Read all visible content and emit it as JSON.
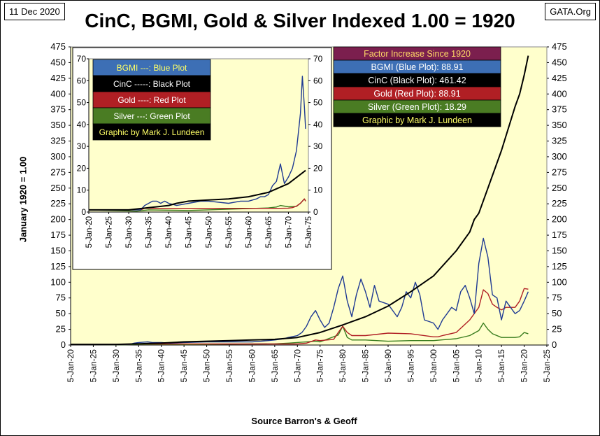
{
  "header": {
    "date": "11 Dec 2020",
    "source": "GATA.Org"
  },
  "chart_data": [
    {
      "id": "main",
      "type": "line",
      "title": "CinC, BGMI, Gold & Silver Indexed 1.00 = 1920",
      "xlabel": "Source Barron's & Geoff",
      "ylabel": "January 1920 = 1.00",
      "ylim": [
        0,
        475
      ],
      "xlim": [
        1920,
        2025
      ],
      "y_ticks": [
        0,
        25,
        50,
        75,
        100,
        125,
        150,
        175,
        200,
        225,
        250,
        275,
        300,
        325,
        350,
        375,
        400,
        425,
        450,
        475
      ],
      "x_tick_labels": [
        "5-Jan-20",
        "5-Jan-25",
        "5-Jan-30",
        "5-Jan-35",
        "5-Jan-40",
        "5-Jan-45",
        "5-Jan-50",
        "5-Jan-55",
        "5-Jan-60",
        "5-Jan-65",
        "5-Jan-70",
        "5-Jan-75",
        "5-Jan-80",
        "5-Jan-85",
        "5-Jan-90",
        "5-Jan-95",
        "5-Jan-00",
        "5-Jan-05",
        "5-Jan-10",
        "5-Jan-15",
        "5-Jan-20",
        "5-Jan-25"
      ],
      "legend_position": "top-right",
      "legend": [
        {
          "text": "Factor Increase Since 1920",
          "bg": "#7b1f4e",
          "fg": "#ffd966"
        },
        {
          "text": "BGMI (Blue Plot):   88.91",
          "bg": "#3d6fb5",
          "fg": "#ffffff"
        },
        {
          "text": "CinC (Black Plot):  461.42",
          "bg": "#000000",
          "fg": "#ffffff"
        },
        {
          "text": "Gold (Red Plot):     88.91",
          "bg": "#b01f24",
          "fg": "#ffffff"
        },
        {
          "text": "Silver (Green Plot):  18.29",
          "bg": "#4a7c23",
          "fg": "#ffffff"
        },
        {
          "text": "Graphic by Mark J. Lundeen",
          "bg": "#000000",
          "fg": "#ffff66"
        }
      ],
      "series": [
        {
          "name": "BGMI",
          "color": "#1f3a93",
          "x": [
            1920,
            1933,
            1934,
            1935,
            1937,
            1938,
            1940,
            1942,
            1945,
            1950,
            1955,
            1960,
            1962,
            1965,
            1967,
            1968,
            1970,
            1971,
            1972,
            1973,
            1974,
            1975,
            1976,
            1977,
            1978,
            1979,
            1980,
            1981,
            1982,
            1983,
            1984,
            1985,
            1986,
            1987,
            1988,
            1990,
            1992,
            1993,
            1994,
            1995,
            1996,
            1997,
            1998,
            2000,
            2001,
            2002,
            2003,
            2004,
            2005,
            2006,
            2007,
            2008,
            2009,
            2010,
            2011,
            2012,
            2013,
            2014,
            2015,
            2016,
            2017,
            2018,
            2019,
            2020,
            2020.9
          ],
          "y": [
            1,
            1,
            3,
            4,
            5,
            4,
            4,
            3,
            4,
            5,
            5,
            5,
            6,
            8,
            10,
            12,
            15,
            20,
            30,
            45,
            55,
            40,
            28,
            35,
            60,
            90,
            110,
            70,
            45,
            80,
            105,
            85,
            60,
            95,
            70,
            65,
            45,
            60,
            85,
            75,
            100,
            80,
            40,
            35,
            25,
            40,
            50,
            60,
            55,
            85,
            95,
            75,
            50,
            130,
            170,
            140,
            80,
            75,
            40,
            70,
            60,
            50,
            55,
            70,
            85
          ]
        },
        {
          "name": "CinC",
          "color": "#000000",
          "x": [
            1920,
            1930,
            1935,
            1940,
            1945,
            1950,
            1955,
            1960,
            1965,
            1970,
            1975,
            1980,
            1985,
            1990,
            1995,
            2000,
            2005,
            2008,
            2009,
            2010,
            2012,
            2015,
            2018,
            2019,
            2020,
            2020.9
          ],
          "y": [
            1,
            1,
            2,
            3,
            5,
            6,
            7,
            8,
            9,
            12,
            20,
            32,
            45,
            62,
            85,
            110,
            150,
            180,
            200,
            210,
            250,
            310,
            380,
            400,
            430,
            461
          ]
        },
        {
          "name": "Gold",
          "color": "#b01f24",
          "x": [
            1920,
            1933,
            1934,
            1970,
            1972,
            1974,
            1975,
            1978,
            1979,
            1980,
            1981,
            1982,
            1985,
            1990,
            1995,
            2000,
            2001,
            2002,
            2005,
            2008,
            2010,
            2011,
            2012,
            2013,
            2014,
            2015,
            2016,
            2018,
            2019,
            2020,
            2020.9
          ],
          "y": [
            1,
            1,
            1.7,
            1.7,
            3,
            8,
            7,
            9,
            20,
            30,
            20,
            15,
            15,
            19,
            18,
            13,
            13,
            15,
            20,
            40,
            60,
            88,
            82,
            65,
            60,
            56,
            60,
            60,
            70,
            90,
            89
          ]
        },
        {
          "name": "Silver",
          "color": "#3a7d1f",
          "x": [
            1920,
            1932,
            1935,
            1945,
            1955,
            1965,
            1968,
            1974,
            1975,
            1979,
            1980,
            1981,
            1982,
            1985,
            1990,
            1995,
            2000,
            2005,
            2008,
            2010,
            2011,
            2012,
            2013,
            2015,
            2018,
            2019,
            2020,
            2020.9
          ],
          "y": [
            1,
            0.4,
            1,
            0.7,
            1.3,
            1.9,
            3,
            6,
            5,
            16,
            30,
            12,
            8,
            8,
            6,
            7,
            7,
            10,
            15,
            23,
            35,
            25,
            18,
            12,
            12,
            13,
            20,
            18
          ]
        }
      ]
    },
    {
      "id": "inset",
      "type": "line",
      "ylim": [
        0,
        70
      ],
      "xlim": [
        1920,
        1975
      ],
      "y_ticks": [
        0,
        10,
        20,
        30,
        40,
        50,
        60,
        70
      ],
      "x_tick_labels": [
        "5-Jan-20",
        "5-Jan-25",
        "5-Jan-30",
        "5-Jan-35",
        "5-Jan-40",
        "5-Jan-45",
        "5-Jan-50",
        "5-Jan-55",
        "5-Jan-60",
        "5-Jan-65",
        "5-Jan-70",
        "5-Jan-75"
      ],
      "legend_position": "top-left",
      "legend": [
        {
          "text": "BGMI ---: Blue Plot",
          "bg": "#3d6fb5",
          "fg": "#ffff66"
        },
        {
          "text": "CinC -----:  Black Plot",
          "bg": "#000000",
          "fg": "#ffffff"
        },
        {
          "text": "Gold ----:  Red Plot",
          "bg": "#b01f24",
          "fg": "#ffffff"
        },
        {
          "text": "Silver ---: Green Plot",
          "bg": "#4a7c23",
          "fg": "#ffffff"
        },
        {
          "text": "Graphic by Mark J. Lundeen",
          "bg": "#000000",
          "fg": "#ffff66"
        }
      ],
      "series": [
        {
          "name": "BGMI",
          "color": "#1f3a93",
          "x": [
            1920,
            1933,
            1934,
            1935,
            1936,
            1937,
            1938,
            1939,
            1940,
            1942,
            1945,
            1948,
            1950,
            1955,
            1958,
            1960,
            1962,
            1963,
            1964,
            1965,
            1966,
            1967,
            1968,
            1969,
            1970,
            1971,
            1972,
            1973,
            1973.5,
            1974,
            1974.3
          ],
          "y": [
            1,
            1,
            3,
            4,
            5,
            5,
            4,
            5,
            4,
            3,
            4,
            5,
            5,
            4,
            5,
            5,
            6,
            7,
            7,
            8,
            12,
            14,
            22,
            13,
            16,
            20,
            28,
            45,
            62,
            48,
            38
          ]
        },
        {
          "name": "CinC",
          "color": "#000000",
          "x": [
            1920,
            1930,
            1935,
            1940,
            1942,
            1945,
            1950,
            1955,
            1960,
            1965,
            1970,
            1974.3
          ],
          "y": [
            1,
            1,
            2,
            3,
            4,
            5,
            5.5,
            6,
            7,
            9,
            13,
            19
          ]
        },
        {
          "name": "Gold",
          "color": "#b01f24",
          "x": [
            1920,
            1933,
            1934,
            1968,
            1970,
            1971,
            1972,
            1973,
            1974,
            1974.3
          ],
          "y": [
            1,
            1,
            1.7,
            1.7,
            1.8,
            2,
            2.7,
            4,
            6,
            5
          ]
        },
        {
          "name": "Silver",
          "color": "#3a7d1f",
          "x": [
            1920,
            1932,
            1935,
            1945,
            1955,
            1965,
            1967,
            1968,
            1970,
            1972,
            1973,
            1974,
            1974.3
          ],
          "y": [
            1,
            0.4,
            1,
            0.7,
            1.3,
            1.9,
            2.3,
            3,
            2.4,
            2.6,
            4,
            6,
            5
          ]
        }
      ]
    }
  ]
}
